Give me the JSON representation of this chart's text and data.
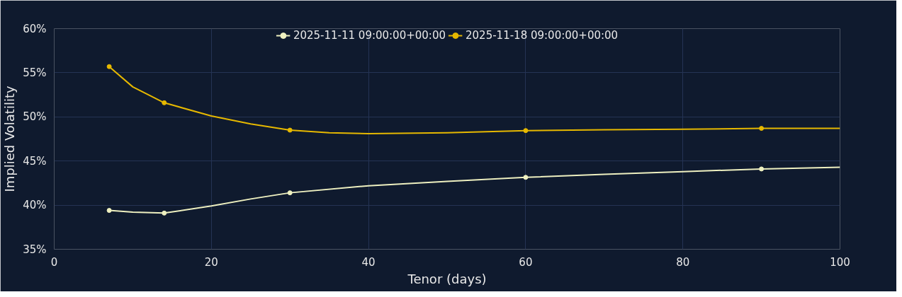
{
  "chart_data": {
    "type": "line",
    "xlabel": "Tenor (days)",
    "ylabel": "Implied Volatility",
    "xlim": [
      0,
      100
    ],
    "xticks": [
      0,
      20,
      40,
      60,
      80,
      100
    ],
    "ylim": [
      35,
      60
    ],
    "yticks": [
      {
        "value": 35,
        "label": "35%"
      },
      {
        "value": 40,
        "label": "40%"
      },
      {
        "value": 45,
        "label": "45%"
      },
      {
        "value": 50,
        "label": "50%"
      },
      {
        "value": 55,
        "label": "55%"
      },
      {
        "value": 60,
        "label": "60%"
      }
    ],
    "grid": true,
    "legend": "top",
    "line_style": "solid",
    "series": [
      {
        "name": "2025-11-11 09:00:00+00:00",
        "marker": "none",
        "color": "#eef0c0",
        "x": [
          7,
          10,
          14,
          20,
          25,
          30,
          40,
          50,
          60,
          70,
          80,
          90,
          100
        ],
        "values": [
          39.4,
          39.2,
          39.1,
          39.9,
          40.7,
          41.4,
          42.2,
          42.7,
          43.15,
          43.5,
          43.8,
          44.1,
          44.3
        ]
      },
      {
        "type": "scatter",
        "marker": "circle",
        "color": "#eef0c0",
        "x": [
          7,
          14,
          30,
          60,
          90
        ],
        "values": [
          39.4,
          39.1,
          41.4,
          43.15,
          44.1
        ]
      },
      {
        "name": "2025-11-18 09:00:00+00:00",
        "marker": "none",
        "color": "#e6b800",
        "x": [
          7,
          10,
          14,
          20,
          25,
          30,
          35,
          40,
          50,
          60,
          70,
          80,
          90,
          100
        ],
        "values": [
          55.7,
          53.4,
          51.6,
          50.1,
          49.2,
          48.5,
          48.2,
          48.1,
          48.2,
          48.45,
          48.55,
          48.6,
          48.7,
          48.7
        ]
      },
      {
        "type": "scatter",
        "marker": "circle",
        "color": "#e6b800",
        "x": [
          7,
          14,
          30,
          60,
          90
        ],
        "values": [
          55.7,
          51.6,
          48.5,
          48.45,
          48.7
        ]
      }
    ]
  }
}
